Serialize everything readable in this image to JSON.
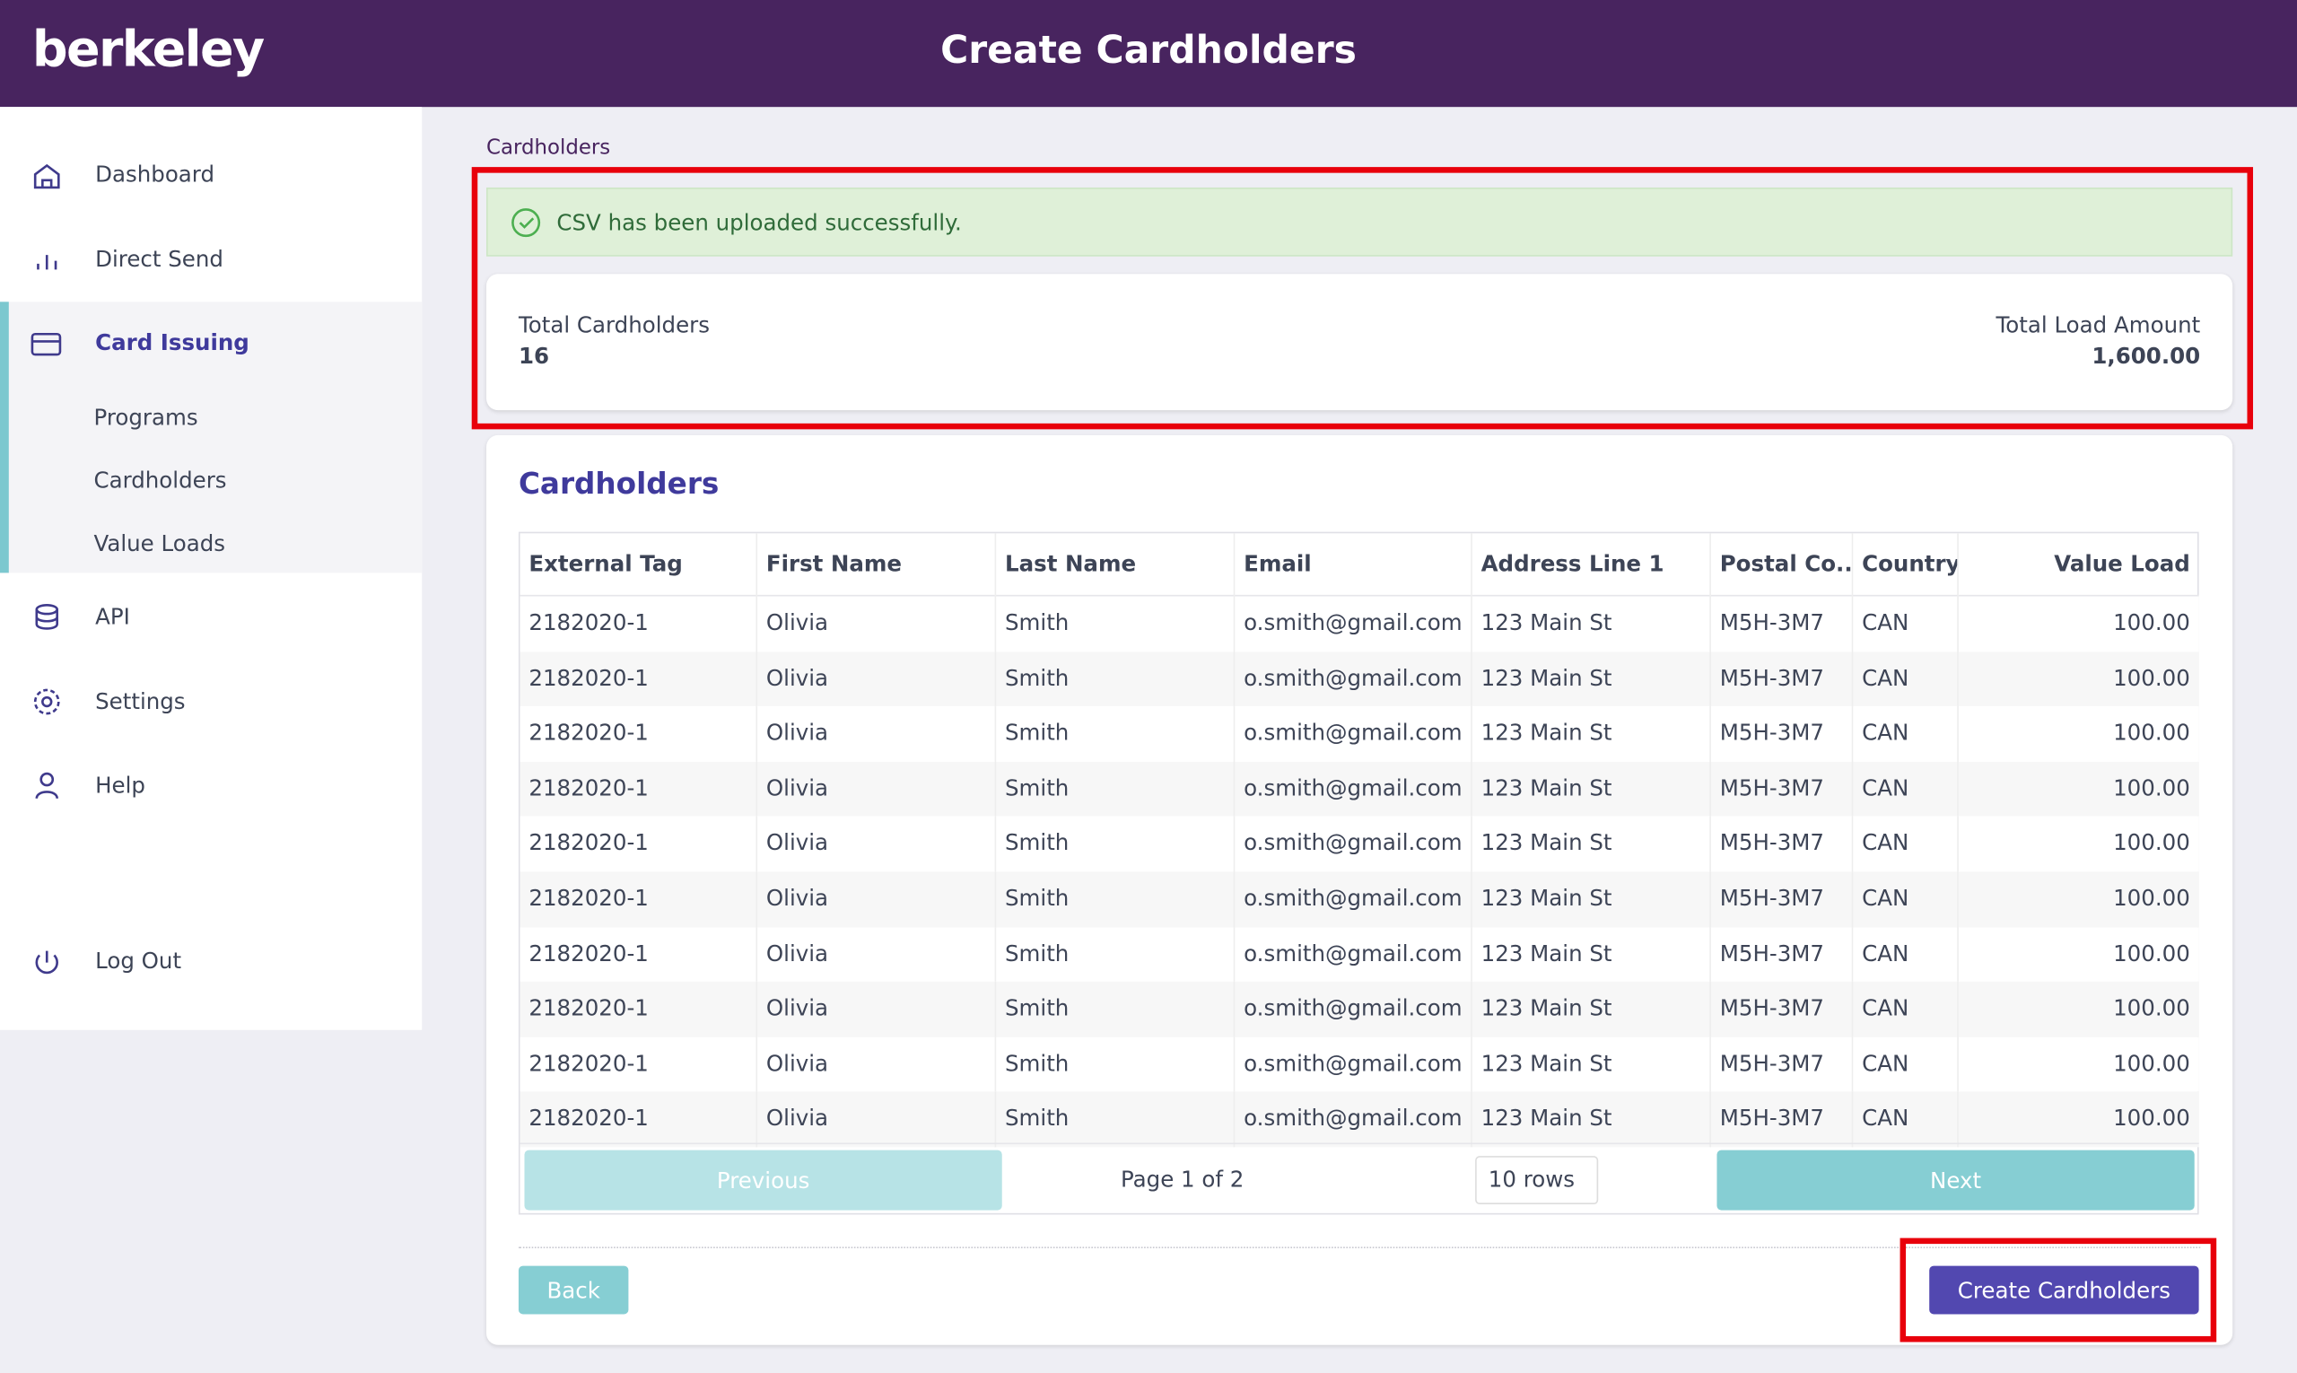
{
  "header": {
    "logo": "berkeley",
    "title": "Create Cardholders"
  },
  "sidebar": {
    "items": [
      "Dashboard",
      "Direct Send",
      "Card Issuing",
      "API",
      "Settings",
      "Help"
    ],
    "sub_items": [
      "Programs",
      "Cardholders",
      "Value Loads"
    ],
    "logout": "Log Out"
  },
  "breadcrumb": "Cardholders",
  "alert": "CSV has been uploaded successfully.",
  "summary": {
    "total_cardholders_label": "Total Cardholders",
    "total_cardholders": "16",
    "total_load_label": "Total Load Amount",
    "total_load": "1,600.00"
  },
  "table": {
    "title": "Cardholders",
    "columns": [
      "External Tag",
      "First Name",
      "Last Name",
      "Email",
      "Address Line 1",
      "Postal Co...",
      "Country",
      "Value Load"
    ],
    "rows": [
      [
        "2182020-1",
        "Olivia",
        "Smith",
        "o.smith@gmail.com",
        "123 Main St",
        "M5H-3M7",
        "CAN",
        "100.00"
      ],
      [
        "2182020-1",
        "Olivia",
        "Smith",
        "o.smith@gmail.com",
        "123 Main St",
        "M5H-3M7",
        "CAN",
        "100.00"
      ],
      [
        "2182020-1",
        "Olivia",
        "Smith",
        "o.smith@gmail.com",
        "123 Main St",
        "M5H-3M7",
        "CAN",
        "100.00"
      ],
      [
        "2182020-1",
        "Olivia",
        "Smith",
        "o.smith@gmail.com",
        "123 Main St",
        "M5H-3M7",
        "CAN",
        "100.00"
      ],
      [
        "2182020-1",
        "Olivia",
        "Smith",
        "o.smith@gmail.com",
        "123 Main St",
        "M5H-3M7",
        "CAN",
        "100.00"
      ],
      [
        "2182020-1",
        "Olivia",
        "Smith",
        "o.smith@gmail.com",
        "123 Main St",
        "M5H-3M7",
        "CAN",
        "100.00"
      ],
      [
        "2182020-1",
        "Olivia",
        "Smith",
        "o.smith@gmail.com",
        "123 Main St",
        "M5H-3M7",
        "CAN",
        "100.00"
      ],
      [
        "2182020-1",
        "Olivia",
        "Smith",
        "o.smith@gmail.com",
        "123 Main St",
        "M5H-3M7",
        "CAN",
        "100.00"
      ],
      [
        "2182020-1",
        "Olivia",
        "Smith",
        "o.smith@gmail.com",
        "123 Main St",
        "M5H-3M7",
        "CAN",
        "100.00"
      ],
      [
        "2182020-1",
        "Olivia",
        "Smith",
        "o.smith@gmail.com",
        "123 Main St",
        "M5H-3M7",
        "CAN",
        "100.00"
      ]
    ]
  },
  "pagination": {
    "previous": "Previous",
    "page": "Page 1 of 2",
    "rows": "10 rows",
    "next": "Next"
  },
  "buttons": {
    "back": "Back",
    "create": "Create Cardholders"
  }
}
